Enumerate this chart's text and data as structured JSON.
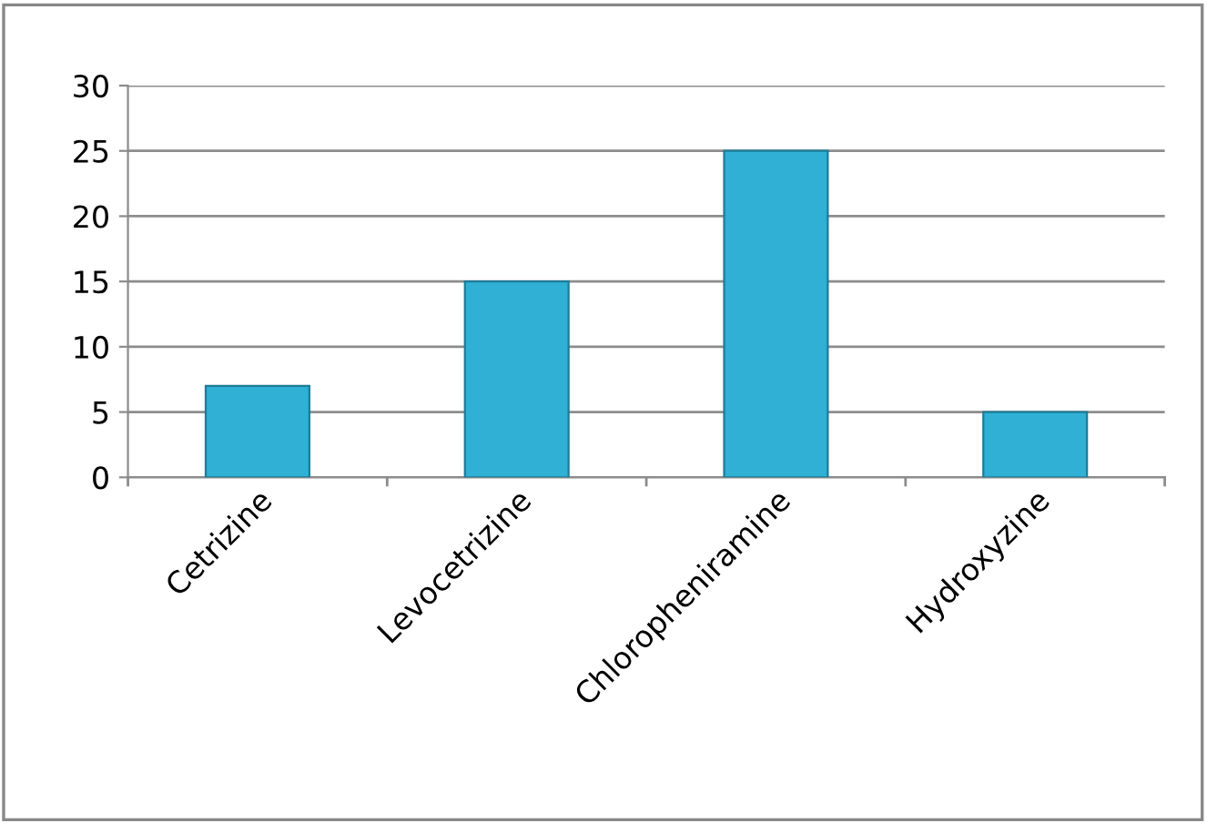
{
  "chart_data": {
    "type": "bar",
    "categories": [
      "Cetrizine",
      "Levocetrizine",
      "Chloropheniramine",
      "Hydroxyzine"
    ],
    "values": [
      7,
      15,
      25,
      5
    ],
    "color": "#2fb0d4",
    "ylim": [
      0,
      30
    ],
    "yticks": [
      0,
      5,
      10,
      15,
      20,
      25,
      30
    ],
    "grid": "y",
    "legend": false
  }
}
